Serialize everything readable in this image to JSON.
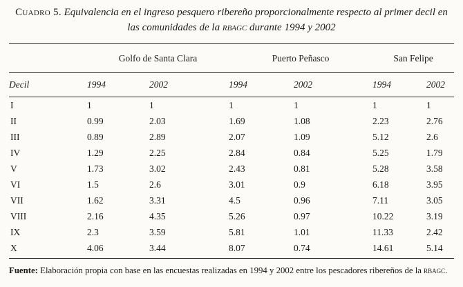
{
  "title": {
    "label": "Cuadro 5.",
    "text_before": " Equivalencia en el ingreso pesquero ribereño proporcionalmente respecto al primer decil en las comunidades de la ",
    "acronym": "rbagc",
    "text_after": " durante 1994 y 2002"
  },
  "table": {
    "decil_header": "Decil",
    "groups": [
      "Golfo de Santa Clara",
      "Puerto Peñasco",
      "San Felipe"
    ],
    "year_headers": [
      "1994",
      "2002",
      "1994",
      "2002",
      "1994",
      "2002"
    ],
    "rows": [
      {
        "decil": "I",
        "values": [
          "1",
          "1",
          "1",
          "1",
          "1",
          "1"
        ]
      },
      {
        "decil": "II",
        "values": [
          "0.99",
          "2.03",
          "1.69",
          "1.08",
          "2.23",
          "2.76"
        ]
      },
      {
        "decil": "III",
        "values": [
          "0.89",
          "2.89",
          "2.07",
          "1.09",
          "5.12",
          "2.6"
        ]
      },
      {
        "decil": "IV",
        "values": [
          "1.29",
          "2.25",
          "2.84",
          "0.84",
          "5.25",
          "1.79"
        ]
      },
      {
        "decil": "V",
        "values": [
          "1.73",
          "3.02",
          "2.43",
          "0.81",
          "5.28",
          "3.58"
        ]
      },
      {
        "decil": "VI",
        "values": [
          "1.5",
          "2.6",
          "3.01",
          "0.9",
          "6.18",
          "3.95"
        ]
      },
      {
        "decil": "VII",
        "values": [
          "1.62",
          "3.31",
          "4.5",
          "0.96",
          "7.11",
          "3.05"
        ]
      },
      {
        "decil": "VIII",
        "values": [
          "2.16",
          "4.35",
          "5.26",
          "0.97",
          "10.22",
          "3.19"
        ]
      },
      {
        "decil": "IX",
        "values": [
          "2.3",
          "3.59",
          "5.81",
          "1.01",
          "11.33",
          "2.42"
        ]
      },
      {
        "decil": "X",
        "values": [
          "4.06",
          "3.44",
          "8.07",
          "0.74",
          "14.61",
          "5.14"
        ]
      }
    ]
  },
  "footer": {
    "label": "Fuente:",
    "text_before": " Elaboración propia con base en las encuestas realizadas en 1994 y 2002 entre los pescadores ribereños de la ",
    "acronym": "rbagc",
    "text_after": "."
  },
  "colors": {
    "background": "#fcfbf7",
    "text": "#1b1b1b",
    "rule": "#262626"
  }
}
